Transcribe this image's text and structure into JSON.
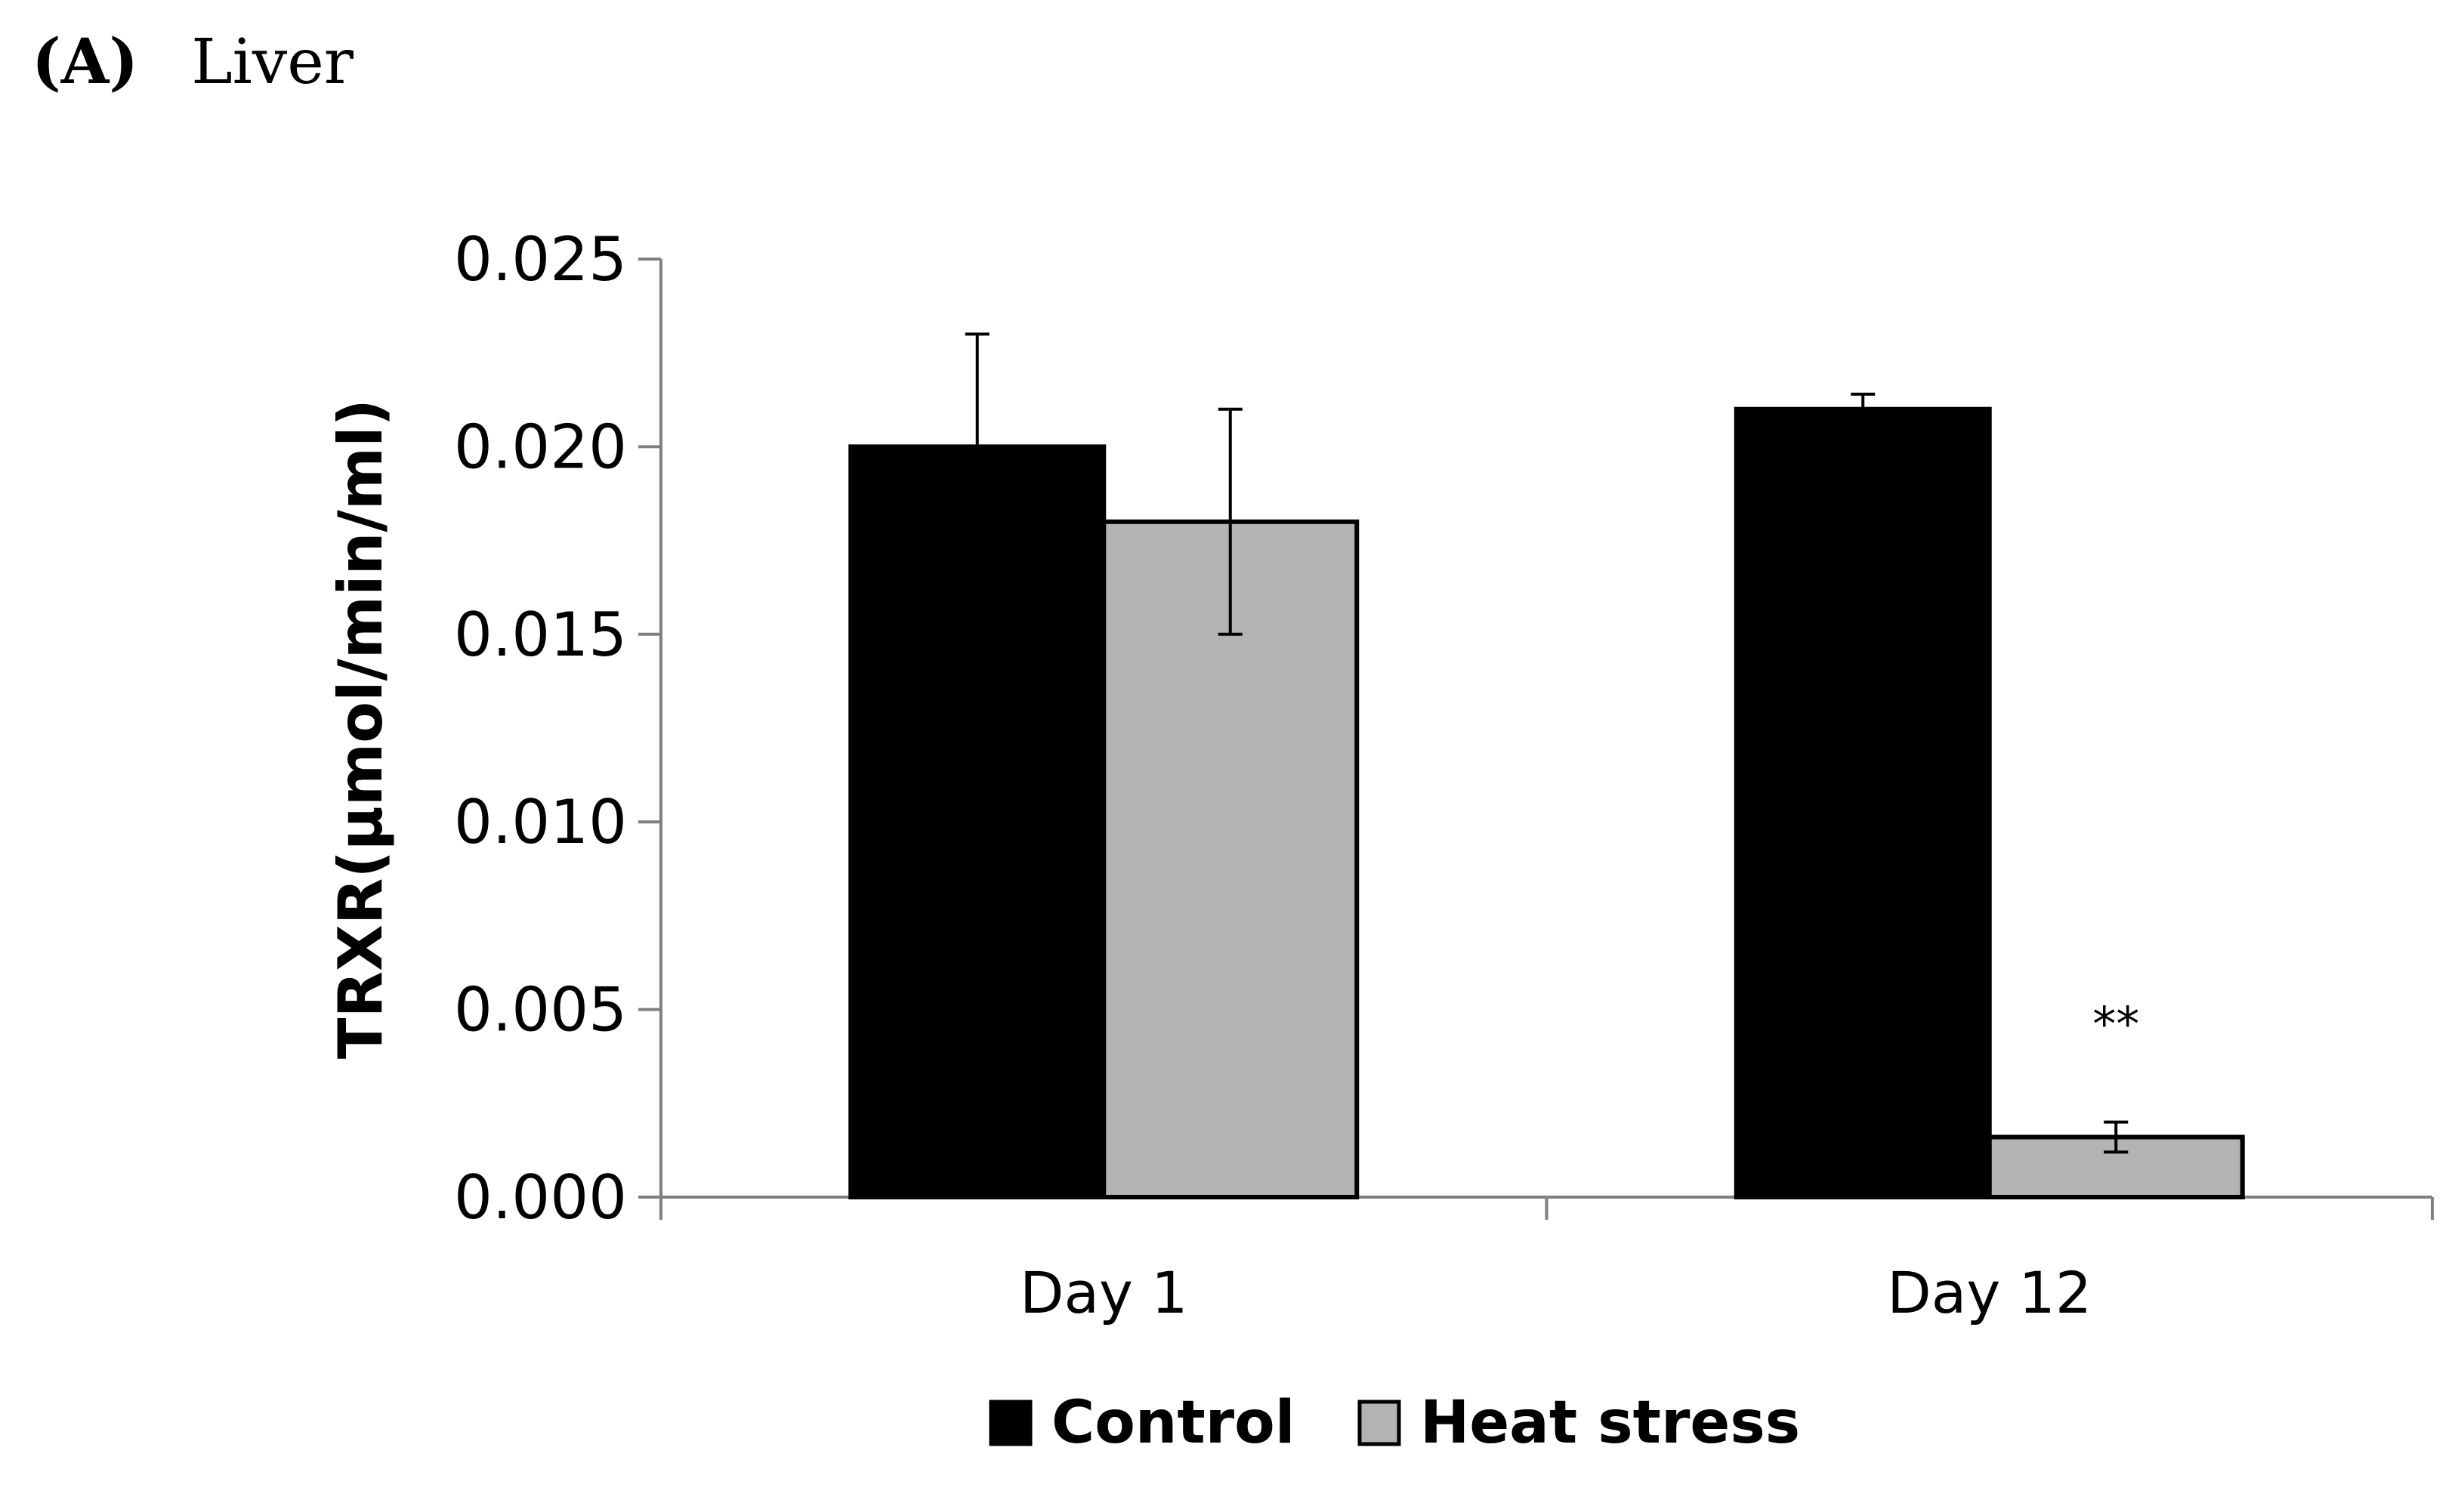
{
  "panel": {
    "letter": "(A)",
    "title": "Liver"
  },
  "chart_data": {
    "type": "bar",
    "categories": [
      "Day 1",
      "Day 12"
    ],
    "series": [
      {
        "name": "Control",
        "color": "#000000",
        "values": [
          0.02,
          0.021
        ],
        "errors": [
          0.003,
          0.0004
        ]
      },
      {
        "name": "Heat stress",
        "color": "#b3b3b3",
        "values": [
          0.018,
          0.0016
        ],
        "errors": [
          0.003,
          0.0004
        ]
      }
    ],
    "ylabel": "TRXR(μmol/min/ml)",
    "xlabel": "",
    "ylim": [
      0,
      0.025
    ],
    "yticks": [
      "0.000",
      "0.005",
      "0.010",
      "0.015",
      "0.020",
      "0.025"
    ],
    "annotations": [
      {
        "text": "**",
        "category": "Day 12",
        "series": "Heat stress"
      }
    ],
    "legend": "bottom-center",
    "grid": false
  }
}
